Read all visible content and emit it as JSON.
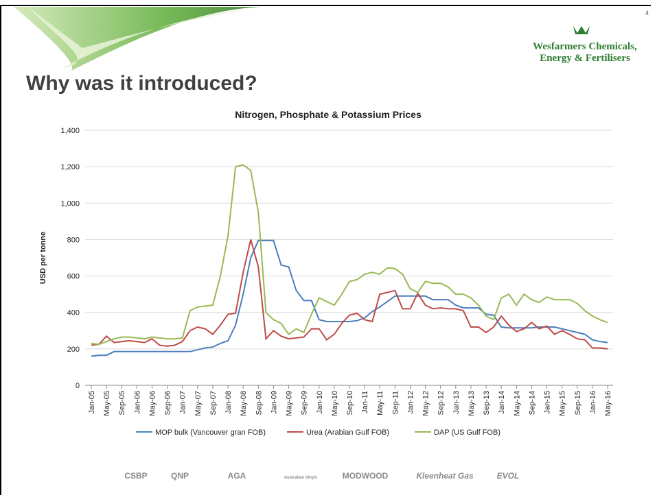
{
  "header": {
    "title": "Why was it introduced?",
    "page_number": "4",
    "logo_line1": "Wesfarmers Chemicals,",
    "logo_line2": "Energy & Fertilisers"
  },
  "chart_data": {
    "type": "line",
    "title": "Nitrogen, Phosphate & Potassium Prices",
    "y_label": "USD per tonne",
    "categories": [
      "Jan-05",
      null,
      "May-05",
      null,
      "Sep-05",
      null,
      "Jan-06",
      null,
      "May-06",
      null,
      "Sep-06",
      null,
      "Jan-07",
      null,
      "May-07",
      null,
      "Sep-07",
      null,
      "Jan-08",
      null,
      "May-08",
      null,
      "Sep-08",
      null,
      "Jan-09",
      null,
      "May-09",
      null,
      "Sep-09",
      null,
      "Jan-10",
      null,
      "May-10",
      null,
      "Sep-10",
      null,
      "Jan-11",
      null,
      "May-11",
      null,
      "Sep-11",
      null,
      "Jan-12",
      null,
      "May-12",
      null,
      "Sep-12",
      null,
      "Jan-13",
      null,
      "May-13",
      null,
      "Sep-13",
      null,
      "Jan-14",
      null,
      "May-14",
      null,
      "Sep-14",
      null,
      "Jan-15",
      null,
      "May-15",
      null,
      "Sep-15",
      null,
      "Jan-16",
      null,
      "May-16"
    ],
    "series": [
      {
        "name": "MOP bulk (Vancouver gran FOB)",
        "color": "#4a7ebb",
        "values": [
          160,
          165,
          165,
          185,
          185,
          185,
          185,
          185,
          185,
          185,
          185,
          185,
          185,
          185,
          195,
          205,
          210,
          230,
          245,
          330,
          500,
          700,
          795,
          795,
          795,
          660,
          650,
          520,
          465,
          465,
          360,
          350,
          350,
          350,
          350,
          355,
          370,
          405,
          430,
          460,
          490,
          490,
          490,
          490,
          490,
          470,
          470,
          470,
          440,
          425,
          425,
          425,
          390,
          385,
          320,
          315,
          315,
          315,
          315,
          320,
          320,
          320,
          310,
          300,
          290,
          280,
          250,
          240,
          235
        ]
      },
      {
        "name": "Urea (Arabian Gulf FOB)",
        "color": "#be4b48",
        "values": [
          220,
          225,
          270,
          235,
          240,
          245,
          240,
          235,
          255,
          220,
          215,
          220,
          240,
          300,
          320,
          310,
          280,
          330,
          390,
          395,
          620,
          800,
          650,
          255,
          300,
          270,
          255,
          260,
          265,
          310,
          310,
          250,
          280,
          340,
          385,
          395,
          360,
          350,
          500,
          510,
          520,
          420,
          420,
          505,
          440,
          420,
          425,
          420,
          420,
          410,
          320,
          320,
          290,
          320,
          380,
          330,
          295,
          310,
          345,
          310,
          325,
          280,
          300,
          280,
          255,
          250,
          205,
          205,
          200
        ]
      },
      {
        "name": "DAP (US Gulf FOB)",
        "color": "#98b954",
        "values": [
          230,
          225,
          240,
          255,
          265,
          265,
          260,
          255,
          265,
          260,
          255,
          255,
          260,
          410,
          430,
          435,
          440,
          600,
          820,
          1200,
          1210,
          1180,
          950,
          400,
          360,
          340,
          280,
          310,
          290,
          390,
          480,
          460,
          440,
          500,
          570,
          580,
          610,
          620,
          610,
          645,
          640,
          610,
          530,
          510,
          570,
          560,
          560,
          540,
          500,
          500,
          480,
          440,
          380,
          360,
          480,
          500,
          440,
          500,
          470,
          455,
          485,
          470,
          470,
          470,
          450,
          410,
          380,
          360,
          345
        ]
      }
    ],
    "ylim": [
      0,
      1400
    ],
    "yticks": [
      0,
      200,
      400,
      600,
      800,
      {
        "value": 1000,
        "label": "1,000"
      },
      {
        "value": 1200,
        "label": "1,200"
      },
      {
        "value": 1400,
        "label": "1,400"
      }
    ],
    "grid": true,
    "legend": "bottom"
  },
  "footer": {
    "logos": [
      "CSBP",
      "QNP",
      "AGA",
      "Australian Vinyls",
      "MODWOOD",
      "Kleenheat Gas",
      "EVOL"
    ]
  }
}
